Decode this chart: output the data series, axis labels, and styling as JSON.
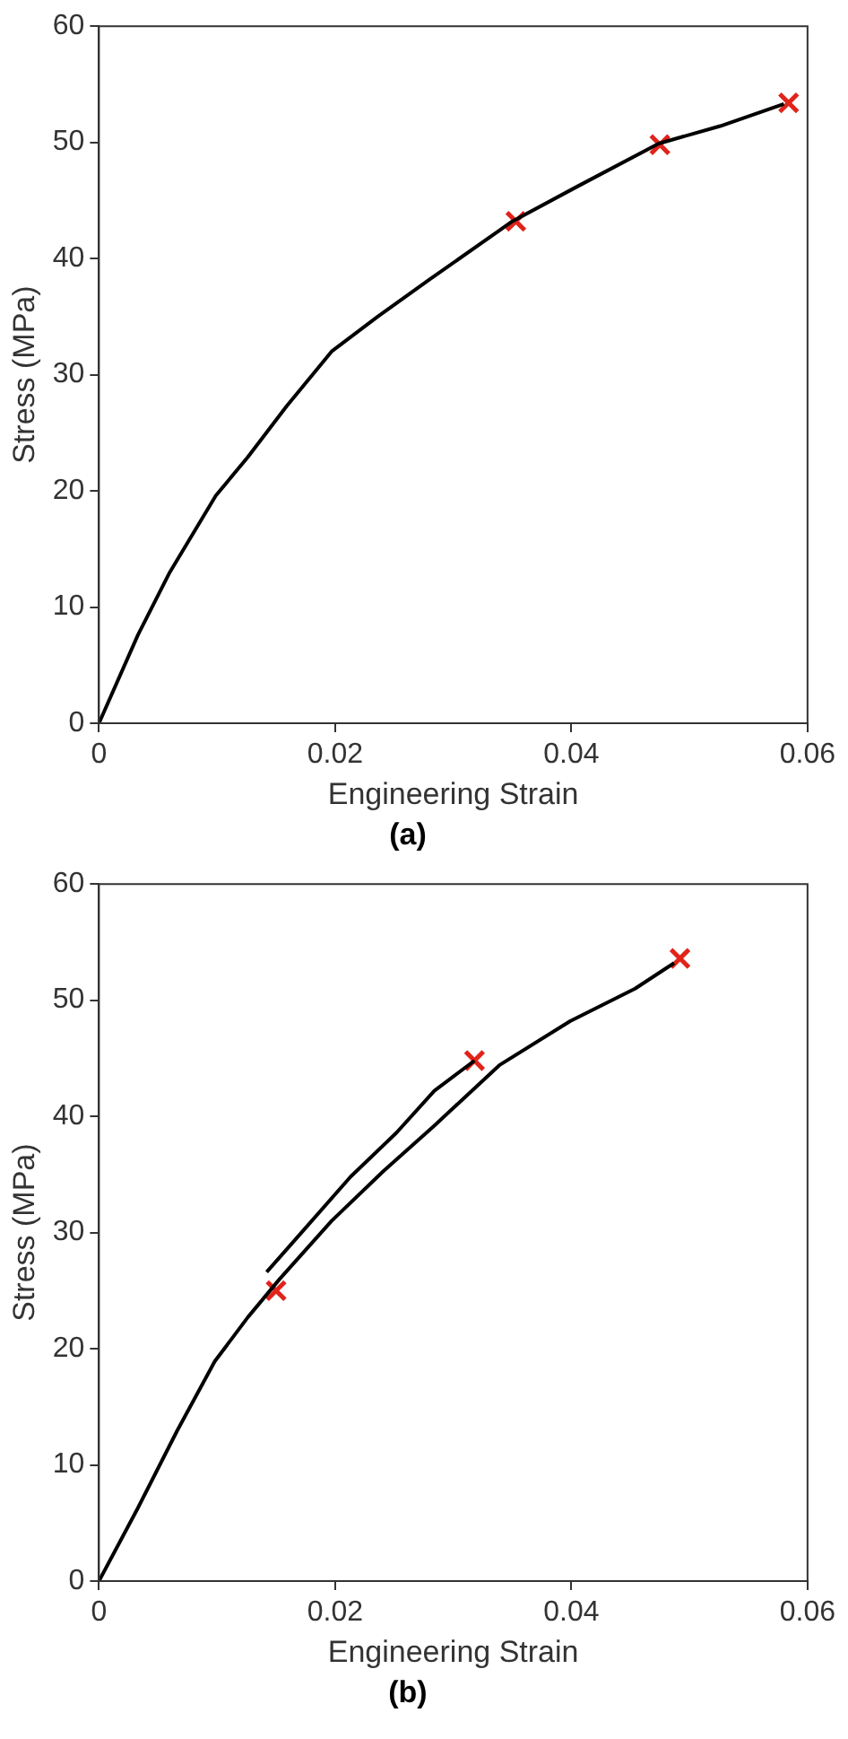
{
  "chart_data": [
    {
      "type": "line",
      "title": "(a)",
      "xlabel": "Engineering Strain",
      "ylabel": "Stress (MPa)",
      "xlim": [
        0,
        0.06
      ],
      "xticks": [
        0,
        0.02,
        0.04,
        0.06
      ],
      "ylim": [
        0,
        60
      ],
      "yticks": [
        0,
        10,
        20,
        30,
        40,
        50,
        60
      ],
      "grid": false,
      "legend": false,
      "series": [
        {
          "color": "#000000",
          "marker": "none",
          "x": [
            0,
            0.0033,
            0.006,
            0.0099,
            0.0126,
            0.0159,
            0.0197,
            0.0236,
            0.028,
            0.035,
            0.0405,
            0.0474,
            0.0526,
            0.058
          ],
          "values": [
            0,
            7.6,
            13,
            19.6,
            22.9,
            27.3,
            32,
            35,
            38.2,
            43.2,
            46.2,
            49.9,
            51.4,
            53.3
          ]
        },
        {
          "type": "scatter",
          "color": "#e0241b",
          "marker": "cross",
          "x": [
            0.0353,
            0.0475,
            0.0584
          ],
          "values": [
            43.2,
            49.8,
            53.4
          ]
        }
      ]
    },
    {
      "type": "line",
      "title": "(b)",
      "xlabel": "Engineering Strain",
      "ylabel": "Stress (MPa)",
      "xlim": [
        0,
        0.06
      ],
      "xticks": [
        0,
        0.02,
        0.04,
        0.06
      ],
      "ylim": [
        0,
        60
      ],
      "yticks": [
        0,
        10,
        20,
        30,
        40,
        50,
        60
      ],
      "grid": false,
      "legend": false,
      "series": [
        {
          "color": "#000000",
          "marker": "none",
          "x": [
            0,
            0.0033,
            0.0066,
            0.0098,
            0.0126,
            0.0153,
            0.0197,
            0.0241,
            0.0284,
            0.0339,
            0.0399,
            0.0454,
            0.0487
          ],
          "values": [
            0,
            6.3,
            12.9,
            18.9,
            22.7,
            26,
            31,
            35.3,
            39.2,
            44.4,
            48.2,
            51,
            53.2
          ]
        },
        {
          "color": "#000000",
          "marker": "none",
          "x": [
            0.0142,
            0.0175,
            0.0213,
            0.0252,
            0.0284,
            0.0318
          ],
          "values": [
            26.6,
            30.4,
            34.8,
            38.6,
            42.2,
            44.8
          ]
        },
        {
          "type": "scatter",
          "color": "#e0241b",
          "marker": "cross",
          "x": [
            0.015,
            0.0318,
            0.0492
          ],
          "values": [
            25,
            44.8,
            53.6
          ]
        }
      ]
    }
  ]
}
